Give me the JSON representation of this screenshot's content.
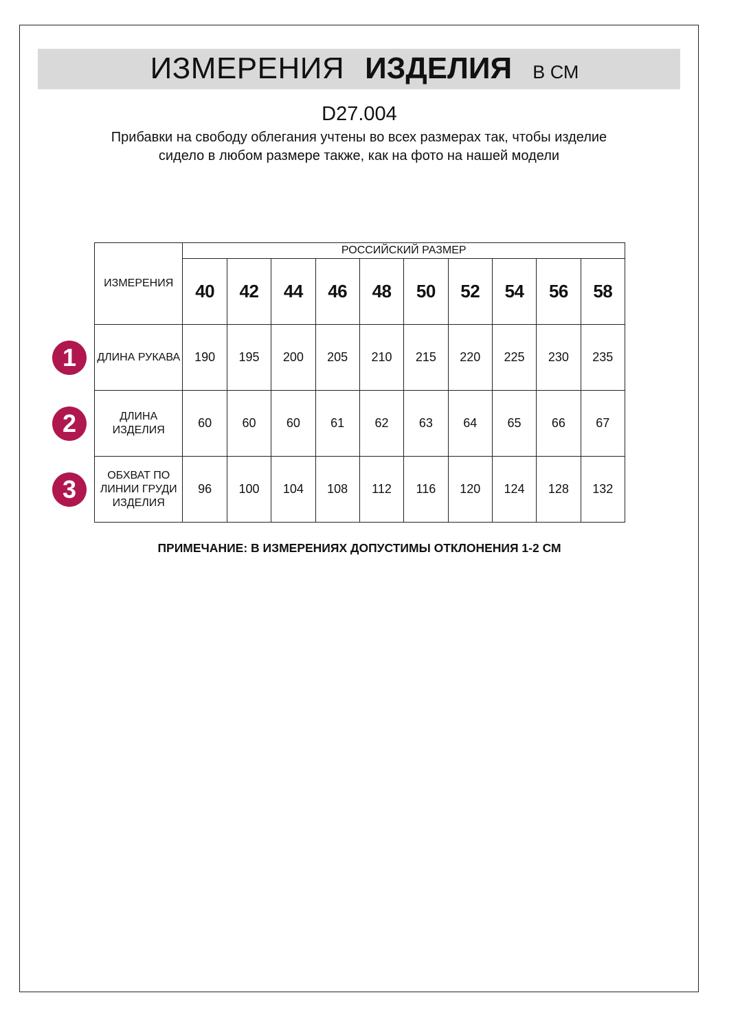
{
  "header": {
    "title_part1": "ИЗМЕРЕНИЯ",
    "title_part2": "ИЗДЕЛИЯ",
    "unit": "В СМ"
  },
  "article": "D27.004",
  "description": "Прибавки на свободу облегания учтены во всех размерах так, чтобы изделие сидело в любом размере также, как на фото на нашей модели",
  "table": {
    "corner_label": "ИЗМЕРЕНИЯ",
    "group_header": "РОССИЙСКИЙ РАЗМЕР",
    "sizes": [
      "40",
      "42",
      "44",
      "46",
      "48",
      "50",
      "52",
      "54",
      "56",
      "58"
    ],
    "rows": [
      {
        "marker": "1",
        "label": "ДЛИНА РУКАВА",
        "values": [
          "190",
          "195",
          "200",
          "205",
          "210",
          "215",
          "220",
          "225",
          "230",
          "235"
        ]
      },
      {
        "marker": "2",
        "label": "ДЛИНА ИЗДЕЛИЯ",
        "values": [
          "60",
          "60",
          "60",
          "61",
          "62",
          "63",
          "64",
          "65",
          "66",
          "67"
        ]
      },
      {
        "marker": "3",
        "label": "ОБХВАТ ПО ЛИНИИ ГРУДИ ИЗДЕЛИЯ",
        "values": [
          "96",
          "100",
          "104",
          "108",
          "112",
          "116",
          "120",
          "124",
          "128",
          "132"
        ]
      }
    ]
  },
  "note": "ПРИМЕЧАНИЕ: В ИЗМЕРЕНИЯХ ДОПУСТИМЫ ОТКЛОНЕНИЯ 1-2 СМ",
  "colors": {
    "marker": "#b0174f",
    "band": "#d9d9d9"
  }
}
